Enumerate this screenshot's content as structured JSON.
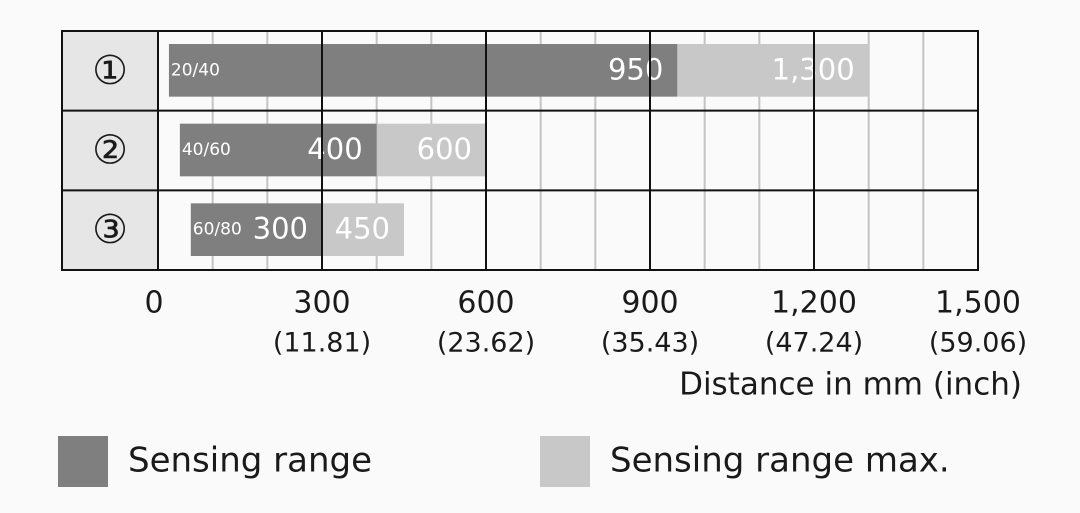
{
  "chart_data": {
    "type": "range-bar",
    "categories": [
      "①",
      "②",
      "③"
    ],
    "starts": [
      20,
      40,
      60
    ],
    "start_labels": [
      "20/40",
      "40/60",
      "60/80"
    ],
    "series": [
      {
        "name": "Sensing range",
        "color": "#7f7f7f",
        "values": [
          950,
          400,
          300
        ]
      },
      {
        "name": "Sensing range max.",
        "color": "#c8c8c8",
        "values": [
          1300,
          600,
          450
        ],
        "value_labels": [
          "1,300",
          "600",
          "450"
        ]
      }
    ],
    "xlim": [
      0,
      1500
    ],
    "xticks": [
      0,
      300,
      600,
      900,
      {
        "value": 1200,
        "label": "1,200"
      },
      {
        "value": 1500,
        "label": "1,500"
      }
    ],
    "xtick_inch_labels": [
      null,
      "(11.81)",
      "(23.62)",
      "(35.43)",
      "(47.24)",
      "(59.06)"
    ],
    "minor_xticks": [
      100,
      200,
      400,
      500,
      700,
      800,
      1000,
      1100,
      1300,
      1400
    ],
    "xlabel": "Distance in mm (inch)",
    "grid": true
  }
}
